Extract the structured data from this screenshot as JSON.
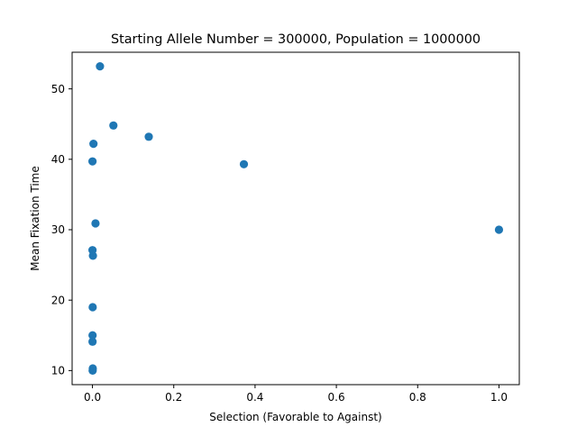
{
  "chart_data": {
    "type": "scatter",
    "title": "Starting Allele Number = 300000, Population = 1000000",
    "xlabel": "Selection (Favorable to Against)",
    "ylabel": "Mean Fixation Time",
    "xlim": [
      -0.05,
      1.05
    ],
    "ylim": [
      8.0,
      55.2
    ],
    "x_ticks": [
      0.0,
      0.2,
      0.4,
      0.6,
      0.8,
      1.0
    ],
    "x_tick_labels": [
      "0.0",
      "0.2",
      "0.4",
      "0.6",
      "0.8",
      "1.0"
    ],
    "y_ticks": [
      10,
      20,
      30,
      40,
      50
    ],
    "y_tick_labels": [
      "10",
      "20",
      "30",
      "40",
      "50"
    ],
    "grid": false,
    "legend": "none",
    "marker_color": "#1f77b4",
    "series": [
      {
        "points": [
          {
            "x": 0.0005,
            "y": 10.0
          },
          {
            "x": 0.0008,
            "y": 10.3
          },
          {
            "x": 0.0002,
            "y": 14.1
          },
          {
            "x": 0.0003,
            "y": 15.0
          },
          {
            "x": 0.0006,
            "y": 19.0
          },
          {
            "x": 0.0012,
            "y": 26.3
          },
          {
            "x": 0.0001,
            "y": 27.1
          },
          {
            "x": 0.0075,
            "y": 30.9
          },
          {
            "x": 0.0001,
            "y": 39.7
          },
          {
            "x": 0.0025,
            "y": 42.2
          },
          {
            "x": 0.0185,
            "y": 53.2
          },
          {
            "x": 0.0515,
            "y": 44.8
          },
          {
            "x": 0.1385,
            "y": 43.2
          },
          {
            "x": 0.3725,
            "y": 39.3
          },
          {
            "x": 1.0,
            "y": 30.0
          }
        ]
      }
    ]
  }
}
